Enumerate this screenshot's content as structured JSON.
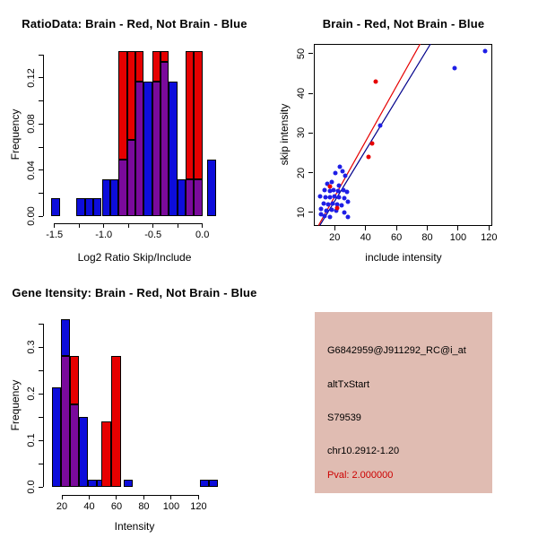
{
  "chart_data": [
    {
      "id": "ratio_histogram",
      "type": "bar",
      "title": "RatioData: Brain - Red, Not Brain - Blue",
      "xlabel": "Log2 Ratio Skip/Include",
      "ylabel": "Frequency",
      "xlim": [
        -1.61,
        0.2
      ],
      "ylim": [
        0,
        0.146
      ],
      "grid": false,
      "legend": "none",
      "overlap_color": "#7A0A9C",
      "x_ticks": [
        {
          "v": -1.5,
          "label": "-1.5"
        },
        {
          "v": -1.25
        },
        {
          "v": -1.0,
          "label": "-1.0"
        },
        {
          "v": -0.75
        },
        {
          "v": -0.5,
          "label": "-0.5"
        },
        {
          "v": -0.25
        },
        {
          "v": 0.0,
          "label": "0.0"
        }
      ],
      "y_ticks": [
        {
          "v": 0,
          "label": "0.00"
        },
        {
          "v": 0.02
        },
        {
          "v": 0.04,
          "label": "0.04"
        },
        {
          "v": 0.06
        },
        {
          "v": 0.08,
          "label": "0.08"
        },
        {
          "v": 0.1
        },
        {
          "v": 0.12,
          "label": "0.12"
        },
        {
          "v": 0.14
        }
      ],
      "series": [
        {
          "name": "Not Brain",
          "color": "#0D0DDB",
          "bins": [
            {
              "x0": -1.53,
              "x1": -1.445,
              "h": 0.016
            },
            {
              "x0": -1.275,
              "x1": -1.19,
              "h": 0.016
            },
            {
              "x0": -1.19,
              "x1": -1.105,
              "h": 0.016
            },
            {
              "x0": -1.105,
              "x1": -1.02,
              "h": 0.016
            },
            {
              "x0": -1.02,
              "x1": -0.935,
              "h": 0.032
            },
            {
              "x0": -0.935,
              "x1": -0.85,
              "h": 0.032
            },
            {
              "x0": -0.85,
              "x1": -0.765,
              "h": 0.049
            },
            {
              "x0": -0.765,
              "x1": -0.68,
              "h": 0.066
            },
            {
              "x0": -0.68,
              "x1": -0.595,
              "h": 0.117
            },
            {
              "x0": -0.595,
              "x1": -0.51,
              "h": 0.117
            },
            {
              "x0": -0.51,
              "x1": -0.425,
              "h": 0.117
            },
            {
              "x0": -0.425,
              "x1": -0.34,
              "h": 0.134
            },
            {
              "x0": -0.34,
              "x1": -0.255,
              "h": 0.117
            },
            {
              "x0": -0.255,
              "x1": -0.17,
              "h": 0.032
            },
            {
              "x0": -0.17,
              "x1": -0.085,
              "h": 0.032
            },
            {
              "x0": -0.085,
              "x1": 0.0,
              "h": 0.032
            },
            {
              "x0": 0.05,
              "x1": 0.135,
              "h": 0.049
            }
          ]
        },
        {
          "name": "Brain",
          "color": "#E60000",
          "bins": [
            {
              "x0": -0.85,
              "x1": -0.765,
              "h": 0.146
            },
            {
              "x0": -0.765,
              "x1": -0.68,
              "h": 0.146
            },
            {
              "x0": -0.68,
              "x1": -0.595,
              "h": 0.146
            },
            {
              "x0": -0.51,
              "x1": -0.425,
              "h": 0.146
            },
            {
              "x0": -0.425,
              "x1": -0.34,
              "h": 0.146
            },
            {
              "x0": -0.17,
              "x1": -0.085,
              "h": 0.146
            },
            {
              "x0": -0.085,
              "x1": 0.0,
              "h": 0.146
            }
          ]
        }
      ]
    },
    {
      "id": "intensity_scatter",
      "type": "scatter",
      "title": "Brain - Red, Not Brain - Blue",
      "xlabel": "include intensity",
      "ylabel": "skip intensity",
      "xlim": [
        6.5,
        121.9
      ],
      "ylim": [
        6.6,
        52.4
      ],
      "grid": false,
      "legend": "none",
      "x_ticks": [
        {
          "v": 20,
          "label": "20"
        },
        {
          "v": 40,
          "label": "40"
        },
        {
          "v": 60,
          "label": "60"
        },
        {
          "v": 80,
          "label": "80"
        },
        {
          "v": 100,
          "label": "100"
        },
        {
          "v": 120,
          "label": "120"
        }
      ],
      "y_ticks": [
        {
          "v": 10,
          "label": "10"
        },
        {
          "v": 20,
          "label": "20"
        },
        {
          "v": 30,
          "label": "30"
        },
        {
          "v": 40,
          "label": "40"
        },
        {
          "v": 50,
          "label": "50"
        }
      ],
      "series": [
        {
          "name": "Not Brain",
          "color": "#1E1EE6",
          "points": [
            [
              23.3,
              21.5
            ],
            [
              20.6,
              19.8
            ],
            [
              24.9,
              20.3
            ],
            [
              26.8,
              19.1
            ],
            [
              18.1,
              17.7
            ],
            [
              15.2,
              17.2
            ],
            [
              22.9,
              16.8
            ],
            [
              13.3,
              15.7
            ],
            [
              16.7,
              15.4
            ],
            [
              19.4,
              15.7
            ],
            [
              22.0,
              15.3
            ],
            [
              25.5,
              15.7
            ],
            [
              27.8,
              15.1
            ],
            [
              10.3,
              14.0
            ],
            [
              14.2,
              13.7
            ],
            [
              17.1,
              13.8
            ],
            [
              20.0,
              13.9
            ],
            [
              22.9,
              13.7
            ],
            [
              26.4,
              13.5
            ],
            [
              12.8,
              12.3
            ],
            [
              15.6,
              11.9
            ],
            [
              18.7,
              12.1
            ],
            [
              21.4,
              11.9
            ],
            [
              24.5,
              11.7
            ],
            [
              28.7,
              12.6
            ],
            [
              11.3,
              10.8
            ],
            [
              14.7,
              10.4
            ],
            [
              18.1,
              10.5
            ],
            [
              21.0,
              10.4
            ],
            [
              26.4,
              10.0
            ],
            [
              11.0,
              9.5
            ],
            [
              13.3,
              9.1
            ],
            [
              16.7,
              8.9
            ],
            [
              28.7,
              8.9
            ],
            [
              49.3,
              31.9
            ],
            [
              97.6,
              46.4
            ],
            [
              117.5,
              50.6
            ]
          ]
        },
        {
          "name": "Brain",
          "color": "#E60000",
          "points": [
            [
              46.7,
              43.0
            ],
            [
              44.0,
              27.4
            ],
            [
              42.0,
              23.9
            ],
            [
              17.0,
              16.4
            ],
            [
              21.5,
              11.0
            ]
          ]
        }
      ],
      "fit_lines": [
        {
          "name": "brain-fit-line",
          "color": "#E60000",
          "slope": 0.695,
          "intercept": 0
        },
        {
          "name": "not-brain-fit-line",
          "color": "#00008B",
          "slope": 0.638,
          "intercept": 0
        }
      ]
    },
    {
      "id": "gene_intensity_histogram",
      "type": "bar",
      "title": "Gene Itensity: Brain - Red, Not Brain - Blue",
      "xlabel": "Intensity",
      "ylabel": "Frequency",
      "xlim": [
        7,
        138
      ],
      "ylim": [
        0,
        0.367
      ],
      "grid": false,
      "legend": "none",
      "overlap_color": "#7A0A9C",
      "x_ticks": [
        {
          "v": 20,
          "label": "20"
        },
        {
          "v": 40,
          "label": "40"
        },
        {
          "v": 60,
          "label": "60"
        },
        {
          "v": 80,
          "label": "80"
        },
        {
          "v": 100,
          "label": "100"
        },
        {
          "v": 120,
          "label": "120"
        }
      ],
      "y_ticks": [
        {
          "v": 0,
          "label": "0.0"
        },
        {
          "v": 0.05
        },
        {
          "v": 0.1,
          "label": "0.1"
        },
        {
          "v": 0.15
        },
        {
          "v": 0.2,
          "label": "0.2"
        },
        {
          "v": 0.25
        },
        {
          "v": 0.3,
          "label": "0.3"
        },
        {
          "v": 0.35
        }
      ],
      "series": [
        {
          "name": "Not Brain",
          "color": "#0D0DDB",
          "bins": [
            {
              "x0": 13.0,
              "x1": 19.5,
              "h": 0.213
            },
            {
              "x0": 19.5,
              "x1": 26.1,
              "h": 0.36
            },
            {
              "x0": 26.1,
              "x1": 32.7,
              "h": 0.176
            },
            {
              "x0": 32.7,
              "x1": 39.2,
              "h": 0.15
            },
            {
              "x0": 39.2,
              "x1": 45.8,
              "h": 0.016
            },
            {
              "x0": 45.8,
              "x1": 52.3,
              "h": 0.016
            },
            {
              "x0": 65.5,
              "x1": 72.0,
              "h": 0.016
            },
            {
              "x0": 121.2,
              "x1": 127.8,
              "h": 0.016
            },
            {
              "x0": 127.8,
              "x1": 134.4,
              "h": 0.016
            }
          ]
        },
        {
          "name": "Brain",
          "color": "#E60000",
          "bins": [
            {
              "x0": 19.5,
              "x1": 26.1,
              "h": 0.28
            },
            {
              "x0": 26.1,
              "x1": 32.7,
              "h": 0.28
            },
            {
              "x0": 49.1,
              "x1": 56.3,
              "h": 0.14
            },
            {
              "x0": 56.3,
              "x1": 63.3,
              "h": 0.28
            }
          ]
        }
      ]
    }
  ],
  "info_box": {
    "bg_color": "#E0BCB2",
    "lines": [
      {
        "text": "G6842959@J911292_RC@i_at",
        "color": "#000000"
      },
      {
        "text": "altTxStart",
        "color": "#000000"
      },
      {
        "text": "S79539",
        "color": "#000000"
      },
      {
        "text": "chr10.2912-1.20",
        "color": "#000000"
      },
      {
        "text": "Pval: 2.000000",
        "color": "#CC0000"
      }
    ]
  }
}
